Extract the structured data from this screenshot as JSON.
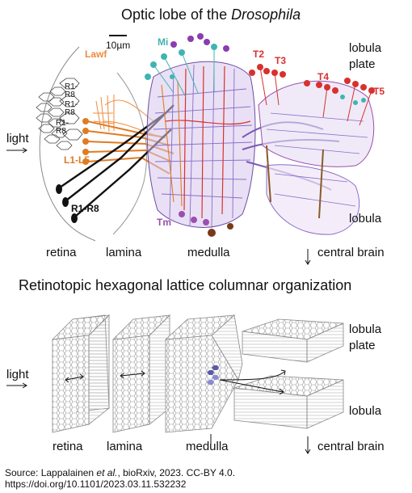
{
  "top": {
    "title_prefix": "Optic lobe of the ",
    "title_italic": "Drosophila",
    "scalebar_label": "10µm",
    "labels": {
      "lobula_plate_1": "lobula",
      "lobula_plate_2": "plate",
      "light": "light",
      "lobula": "lobula",
      "retina": "retina",
      "lamina": "lamina",
      "medulla": "medulla",
      "central_brain": "central brain"
    },
    "neuron_labels": {
      "mi": "Mi",
      "lawf": "Lawf",
      "l1l5": "L1-L5",
      "r1r8": "R1-R8",
      "tm": "Tm",
      "t2": "T2",
      "t3": "T3",
      "t4": "T4",
      "t5": "T5"
    },
    "ommatidia": [
      "R1-",
      "R8",
      "R1-",
      "R8",
      "R1-",
      "R8"
    ]
  },
  "bottom": {
    "title": "Retinotopic hexagonal lattice columnar organization",
    "labels": {
      "light": "light",
      "lobula_plate_1": "lobula",
      "lobula_plate_2": "plate",
      "lobula": "lobula",
      "retina": "retina",
      "lamina": "lamina",
      "medulla": "medulla",
      "central_brain": "central brain"
    }
  },
  "source": {
    "line1_a": "Source: Lappalainen ",
    "line1_italic": "et al.",
    "line1_b": ", bioRxiv, 2023. CC-BY 4.0.",
    "line2": "https://doi.org/10.1101/2023.03.11.532232"
  },
  "colors": {
    "mi": "#3fb4b0",
    "lawf": "#ef8a3c",
    "l1l5": "#e07b22",
    "r1r8": "#111111",
    "tm": "#9b4fb0",
    "t_red": "#d8312e",
    "medulla_purple": "#8a6cc9",
    "lattice_stroke": "#9a9a9a",
    "highlight": "#5a5aa8"
  }
}
